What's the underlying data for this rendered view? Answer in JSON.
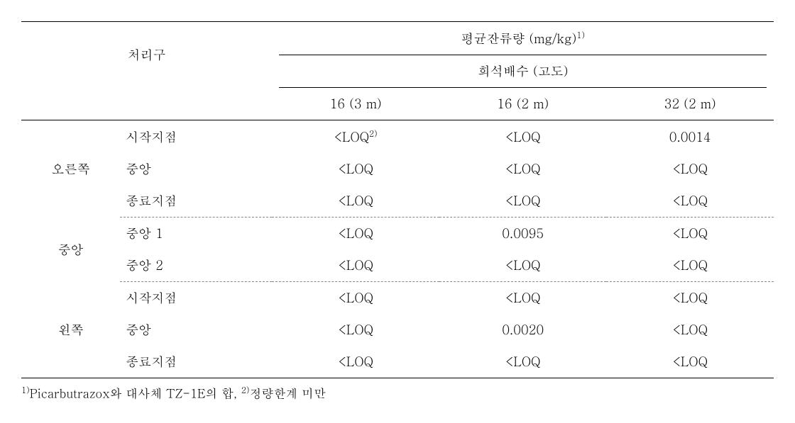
{
  "header": {
    "treatment": "처리구",
    "avg_residue": "평균잔류량 (mg/kg)",
    "avg_residue_sup": "1)",
    "dilution": "희석배수 (고도)",
    "cols": [
      "16 (3 m)",
      "16 (2 m)",
      "32 (2 m)"
    ]
  },
  "groups": [
    {
      "label": "오른쪽",
      "rows": [
        {
          "sub": "시작지점",
          "vals": [
            "<LOQ",
            "<LOQ",
            "0.0014"
          ],
          "sup0": "2)"
        },
        {
          "sub": "중앙",
          "vals": [
            "<LOQ",
            "<LOQ",
            "<LOQ"
          ]
        },
        {
          "sub": "종료지점",
          "vals": [
            "<LOQ",
            "<LOQ",
            "<LOQ"
          ]
        }
      ]
    },
    {
      "label": "중앙",
      "rows": [
        {
          "sub": "중앙 1",
          "vals": [
            "<LOQ",
            "0.0095",
            "<LOQ"
          ]
        },
        {
          "sub": "중앙 2",
          "vals": [
            "<LOQ",
            "<LOQ",
            "<LOQ"
          ]
        }
      ]
    },
    {
      "label": "왼쪽",
      "rows": [
        {
          "sub": "시작지점",
          "vals": [
            "<LOQ",
            "<LOQ",
            "<LOQ"
          ]
        },
        {
          "sub": "중앙",
          "vals": [
            "<LOQ",
            "0.0020",
            "<LOQ"
          ]
        },
        {
          "sub": "종료지점",
          "vals": [
            "<LOQ",
            "<LOQ",
            "<LOQ"
          ]
        }
      ]
    }
  ],
  "footnote": {
    "sup1": "1)",
    "text1": "Picarbutrazox와 대사체 TZ-1E의 합, ",
    "sup2": "2)",
    "text2": "정량한계 미만"
  }
}
